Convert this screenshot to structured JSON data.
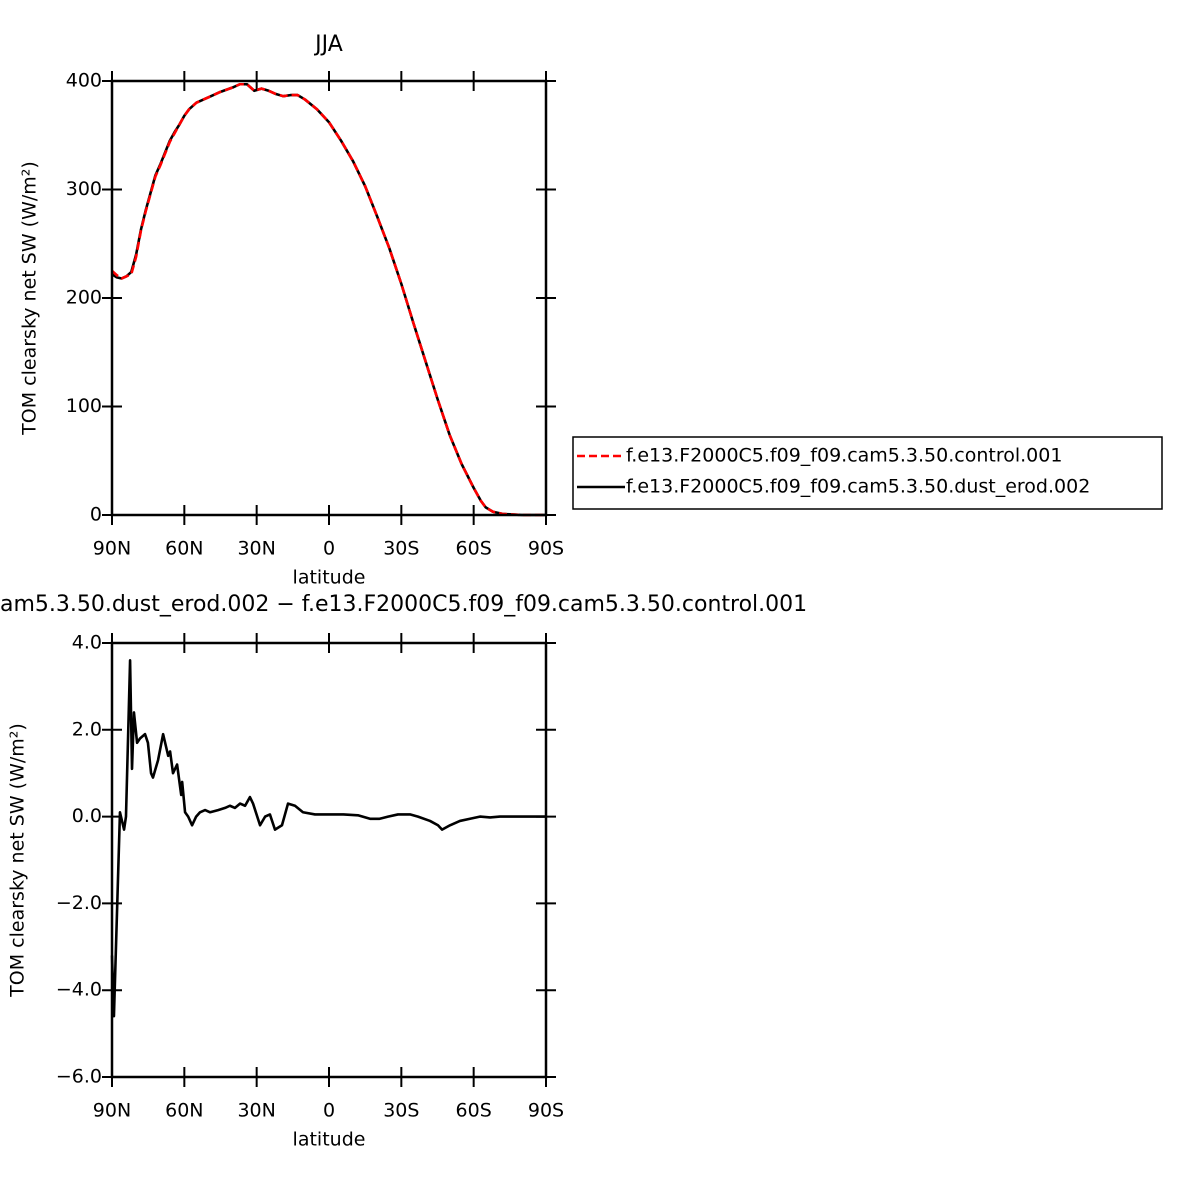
{
  "chart_data": [
    {
      "type": "line",
      "title": "JJA",
      "xlabel": "latitude",
      "ylabel": "TOM clearsky net SW (W/m²)",
      "x": [
        90,
        88,
        86,
        84,
        82,
        80,
        78,
        76,
        74,
        72,
        70,
        68,
        66,
        64,
        62,
        60,
        58,
        55,
        50,
        45,
        40,
        37,
        34,
        31,
        28,
        25,
        22,
        19,
        16,
        13,
        10,
        5,
        0,
        -5,
        -10,
        -15,
        -20,
        -25,
        -30,
        -35,
        -40,
        -45,
        -50,
        -55,
        -60,
        -63,
        -65,
        -68,
        -72,
        -80,
        -90
      ],
      "series": [
        {
          "name": "f.e13.F2000C5.f09_f09.cam5.3.50.control.001",
          "color": "#ff0000",
          "dash": "dashed",
          "values": [
            225,
            221,
            218,
            220,
            222,
            238,
            262,
            280,
            296,
            312,
            322,
            333,
            344,
            352,
            360,
            368,
            374,
            380,
            385,
            390,
            394,
            397,
            397,
            391,
            393,
            391,
            388,
            386,
            387,
            387,
            383,
            374,
            362,
            345,
            326,
            303,
            275,
            246,
            213,
            177,
            142,
            107,
            74,
            47,
            25,
            13,
            7,
            3,
            1,
            0,
            0
          ]
        },
        {
          "name": "f.e13.F2000C5.f09_f09.cam5.3.50.dust_erod.002",
          "color": "#000000",
          "dash": "solid",
          "values": [
            222,
            219,
            218,
            220,
            224,
            240,
            263,
            281,
            297,
            313,
            323,
            334,
            345,
            353,
            360,
            368,
            374,
            380,
            385,
            390,
            394,
            397,
            397,
            391,
            393,
            391,
            388,
            386,
            387,
            387,
            383,
            374,
            362,
            345,
            326,
            303,
            275,
            246,
            213,
            177,
            142,
            107,
            74,
            47,
            25,
            13,
            7,
            3,
            1,
            0,
            0
          ]
        }
      ],
      "xlim": [
        90,
        -90
      ],
      "xticks": [
        {
          "value": 90,
          "label": "90N"
        },
        {
          "value": 60,
          "label": "60N"
        },
        {
          "value": 30,
          "label": "30N"
        },
        0,
        {
          "value": -30,
          "label": "30S"
        },
        {
          "value": -60,
          "label": "60S"
        },
        {
          "value": -90,
          "label": "90S"
        }
      ],
      "ylim": [
        0,
        400
      ],
      "yticks": [
        0,
        100,
        200,
        300,
        400
      ],
      "legend": "right"
    },
    {
      "type": "line",
      "title": "am5.3.50.dust_erod.002 − f.e13.F2000C5.f09_f09.cam5.3.50.control.001",
      "xlabel": "latitude",
      "ylabel": "TOM clearsky net SW (W/m²)",
      "x": [
        90,
        89.2,
        86.7,
        85,
        84.2,
        82.5,
        81.7,
        80.9,
        79.6,
        78.4,
        76.3,
        75.1,
        73.8,
        73,
        70.9,
        68.8,
        66.7,
        65.9,
        64.7,
        63,
        61.3,
        60.9,
        59.7,
        58.4,
        56.8,
        55.1,
        53.5,
        51.4,
        49.3,
        46,
        43.1,
        41.1,
        39,
        36.9,
        34.8,
        32.8,
        31.5,
        28.6,
        26.5,
        24.5,
        22.4,
        19.5,
        17,
        14.1,
        10.8,
        5.8,
        0,
        -6,
        -12,
        -17,
        -21,
        -24.5,
        -28.6,
        -33.6,
        -36.9,
        -41.9,
        -45.2,
        -46.9,
        -50.2,
        -54.3,
        -58.5,
        -62.6,
        -66.8,
        -70.9,
        -90
      ],
      "series": [
        {
          "color": "#000000",
          "dash": "solid",
          "values": [
            -3.2,
            -4.6,
            0.1,
            -0.3,
            0,
            3.6,
            1.1,
            2.4,
            1.7,
            1.8,
            1.9,
            1.7,
            1.0,
            0.9,
            1.3,
            1.9,
            1.4,
            1.5,
            1.0,
            1.2,
            0.5,
            0.8,
            0.1,
            0.0,
            -0.2,
            0.0,
            0.1,
            0.15,
            0.1,
            0.15,
            0.2,
            0.25,
            0.2,
            0.3,
            0.25,
            0.45,
            0.3,
            -0.2,
            0.0,
            0.05,
            -0.3,
            -0.2,
            0.3,
            0.25,
            0.1,
            0.05,
            0.05,
            0.05,
            0.03,
            -0.05,
            -0.05,
            0.0,
            0.05,
            0.05,
            0.0,
            -0.1,
            -0.2,
            -0.3,
            -0.2,
            -0.1,
            -0.05,
            0.0,
            -0.02,
            0.0,
            0.0
          ]
        }
      ],
      "xlim": [
        90,
        -90
      ],
      "xticks": [
        {
          "value": 90,
          "label": "90N"
        },
        {
          "value": 60,
          "label": "60N"
        },
        {
          "value": 30,
          "label": "30N"
        },
        0,
        {
          "value": -30,
          "label": "30S"
        },
        {
          "value": -60,
          "label": "60S"
        },
        {
          "value": -90,
          "label": "90S"
        }
      ],
      "ylim": [
        -6,
        4
      ],
      "yticks": [
        {
          "value": -6,
          "label": "−6.0"
        },
        {
          "value": -4,
          "label": "−4.0"
        },
        {
          "value": -2,
          "label": "−2.0"
        },
        {
          "value": 0,
          "label": "0.0"
        },
        {
          "value": 2,
          "label": "2.0"
        },
        {
          "value": 4,
          "label": "4.0"
        }
      ]
    }
  ]
}
